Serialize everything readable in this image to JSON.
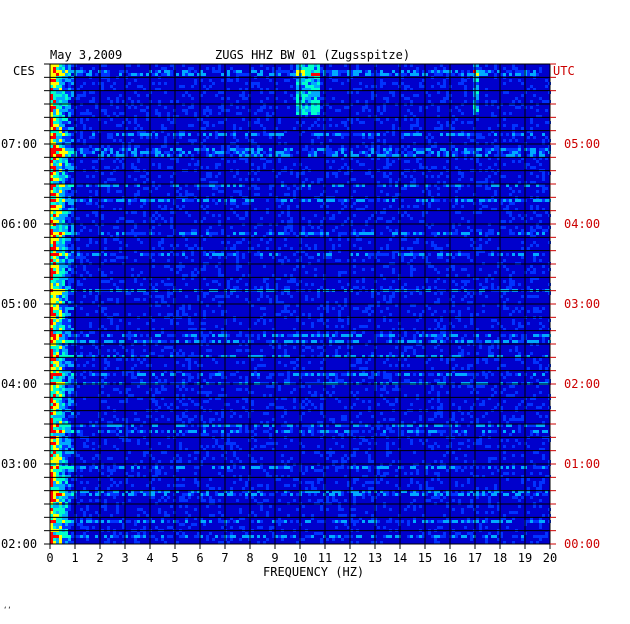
{
  "header": {
    "date": "May 3,2009",
    "station": "ZUGS HHZ BW 01 (Zugsspitze)"
  },
  "left_axis_title": "CES",
  "right_axis_title": "UTC",
  "footer_mark": "‘‘",
  "colors": {
    "background": "#0000cc",
    "left_labels": "#000000",
    "right_labels": "#cc0000",
    "grid": "#000000"
  },
  "chart_data": {
    "type": "heatmap",
    "title": "ZUGS HHZ BW 01 (Zugsspitze)",
    "xlabel": "FREQUENCY (HZ)",
    "xlim": [
      0,
      20
    ],
    "x_ticks": [
      "0",
      "1",
      "2",
      "3",
      "4",
      "5",
      "6",
      "7",
      "8",
      "9",
      "10",
      "11",
      "12",
      "13",
      "14",
      "15",
      "16",
      "17",
      "18",
      "19",
      "20"
    ],
    "y_ticks_left": [
      "07:00",
      "06:00",
      "05:00",
      "04:00",
      "03:00",
      "02:00"
    ],
    "y_ticks_right": [
      "05:00",
      "04:00",
      "03:00",
      "02:00",
      "01:00",
      "00:00"
    ],
    "grid": true,
    "colormap": [
      "#0000cc",
      "#0033ff",
      "#00aaff",
      "#00ffcc",
      "#ffff00",
      "#ff0000"
    ]
  }
}
